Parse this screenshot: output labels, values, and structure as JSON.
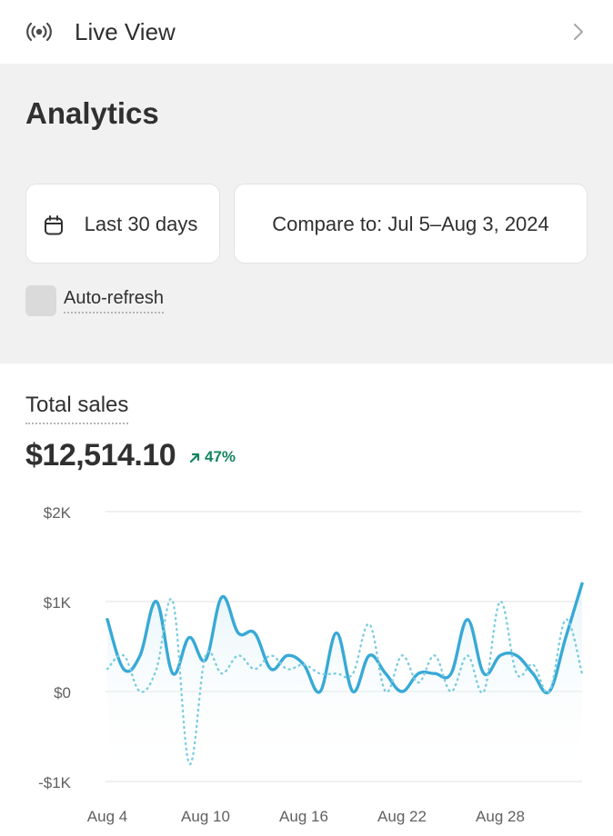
{
  "live_view": {
    "label": "Live View",
    "icon": "broadcast-icon",
    "chevron": "chevron-right-icon"
  },
  "analytics": {
    "title": "Analytics",
    "date_range_label": "Last 30 days",
    "compare_label": "Compare to: Jul 5–Aug 3, 2024",
    "auto_refresh_label": "Auto-refresh",
    "auto_refresh_checked": false
  },
  "metric": {
    "title": "Total sales",
    "value": "$12,514.10",
    "change": "47%",
    "change_direction": "up",
    "change_color": "#13855c"
  },
  "chart_data": {
    "type": "line",
    "ylim": [
      -1000,
      2000
    ],
    "yticks": [
      {
        "value": 2000,
        "label": "$2K"
      },
      {
        "value": 1000,
        "label": "$1K"
      },
      {
        "value": 0,
        "label": "$0"
      },
      {
        "value": -1000,
        "label": "-$1K"
      }
    ],
    "x": [
      "Aug 4",
      "Aug 5",
      "Aug 6",
      "Aug 7",
      "Aug 8",
      "Aug 9",
      "Aug 10",
      "Aug 11",
      "Aug 12",
      "Aug 13",
      "Aug 14",
      "Aug 15",
      "Aug 16",
      "Aug 17",
      "Aug 18",
      "Aug 19",
      "Aug 20",
      "Aug 21",
      "Aug 22",
      "Aug 23",
      "Aug 24",
      "Aug 25",
      "Aug 26",
      "Aug 27",
      "Aug 28",
      "Aug 29",
      "Aug 30",
      "Aug 31",
      "Sep 1",
      "Sep 2"
    ],
    "xtick_labels": [
      "Aug 4",
      "Aug 10",
      "Aug 16",
      "Aug 22",
      "Aug 28"
    ],
    "series": [
      {
        "style": "solid",
        "color": "#38a9d6",
        "values": [
          800,
          250,
          400,
          1000,
          200,
          600,
          350,
          1050,
          650,
          650,
          250,
          400,
          300,
          0,
          650,
          0,
          400,
          200,
          0,
          200,
          200,
          200,
          800,
          200,
          400,
          400,
          200,
          0,
          600,
          1200
        ]
      },
      {
        "style": "dotted",
        "color": "#7ccde0",
        "values": [
          250,
          400,
          0,
          250,
          1000,
          -800,
          400,
          200,
          400,
          250,
          400,
          250,
          300,
          200,
          200,
          200,
          750,
          0,
          400,
          100,
          400,
          0,
          400,
          0,
          1000,
          200,
          300,
          0,
          800,
          200
        ]
      }
    ],
    "grid": true,
    "legend": "none"
  }
}
